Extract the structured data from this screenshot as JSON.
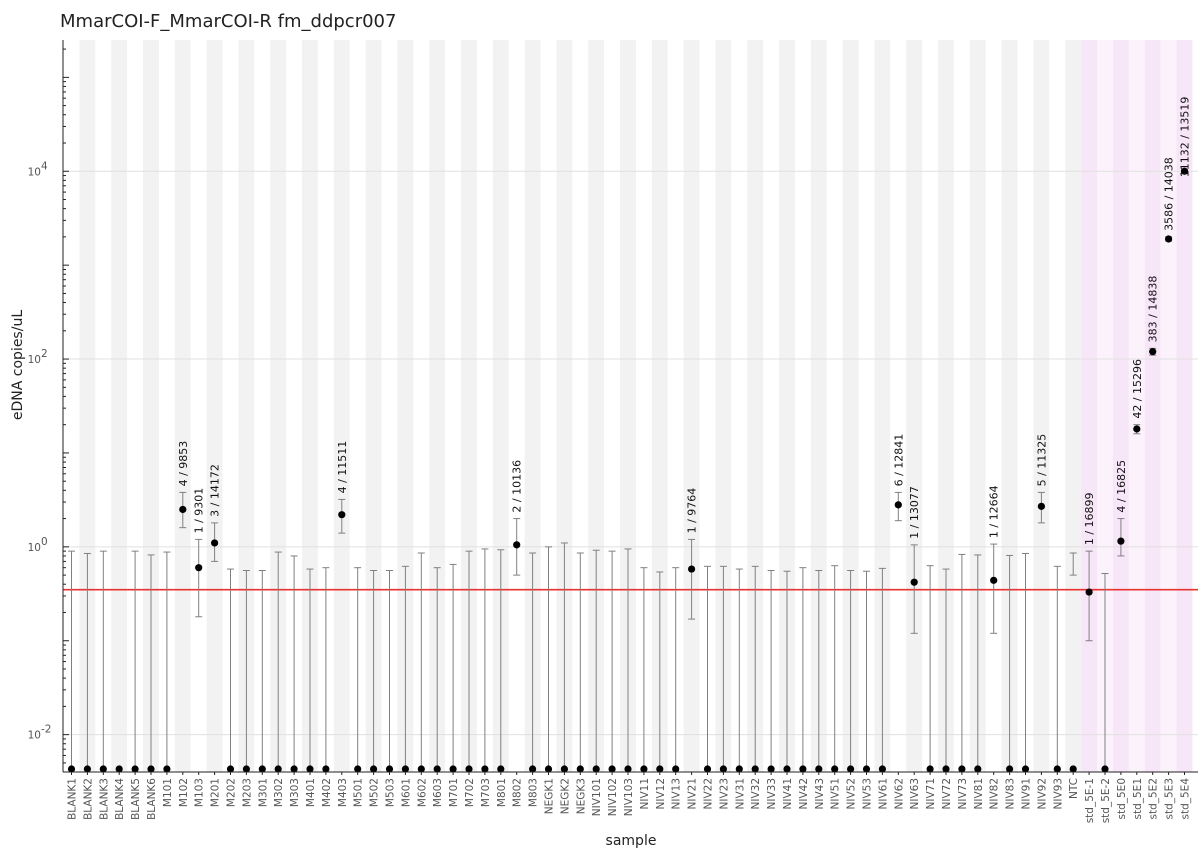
{
  "chart_data": {
    "type": "scatter",
    "title": "MmarCOI-F_MmarCOI-R fm_ddpcr007",
    "xlabel": "sample",
    "ylabel": "eDNA copies/uL",
    "yscale": "log",
    "ylim": [
      0.004,
      250000
    ],
    "ytick_labels": [
      "10",
      "10",
      "10",
      "10",
      "10"
    ],
    "ytick_exponents": [
      "-2",
      "0",
      "2",
      "4",
      ""
    ],
    "yticks": [
      0.01,
      1,
      100,
      10000
    ],
    "threshold_line": {
      "value": 0.35,
      "color": "#e8332f"
    },
    "band_colors": {
      "gray": "#f2f2f2",
      "white": "#ffffff",
      "std_light": "#fcf2fc",
      "std_dark": "#f7e6f7"
    },
    "point_color": "#000000",
    "errorbar_color": "#808080",
    "grid": true,
    "categories": [
      "BLANK1",
      "BLANK2",
      "BLANK3",
      "BLANK4",
      "BLANK5",
      "BLANK6",
      "M101",
      "M102",
      "M103",
      "M201",
      "M202",
      "M203",
      "M301",
      "M302",
      "M303",
      "M401",
      "M402",
      "M403",
      "M501",
      "M502",
      "M503",
      "M601",
      "M602",
      "M603",
      "M701",
      "M702",
      "M703",
      "M801",
      "M802",
      "M803",
      "NEGK1",
      "NEGK2",
      "NEGK3",
      "NIV101",
      "NIV102",
      "NIV103",
      "NIV11",
      "NIV12",
      "NIV13",
      "NIV21",
      "NIV22",
      "NIV23",
      "NIV31",
      "NIV32",
      "NIV33",
      "NIV41",
      "NIV42",
      "NIV43",
      "NIV51",
      "NIV52",
      "NIV53",
      "NIV61",
      "NIV62",
      "NIV63",
      "NIV71",
      "NIV72",
      "NIV73",
      "NIV81",
      "NIV82",
      "NIV83",
      "NIV91",
      "NIV92",
      "NIV93",
      "NTC",
      "std_5E-1",
      "std_5E-2",
      "std_5E0",
      "std_5E1",
      "std_5E2",
      "std_5E3",
      "std_5E4"
    ],
    "values": [
      0.004,
      0.004,
      0.004,
      0.004,
      0.004,
      0.004,
      0.004,
      2.5,
      0.6,
      1.1,
      0.004,
      0.004,
      0.004,
      0.004,
      0.004,
      0.004,
      0.004,
      2.2,
      0.004,
      0.004,
      0.004,
      0.004,
      0.004,
      0.004,
      0.004,
      0.004,
      0.004,
      0.004,
      1.05,
      0.004,
      0.004,
      0.004,
      0.004,
      0.004,
      0.004,
      0.004,
      0.004,
      0.004,
      0.004,
      0.58,
      0.004,
      0.004,
      0.004,
      0.004,
      0.004,
      0.004,
      0.004,
      0.004,
      0.004,
      0.004,
      0.004,
      0.004,
      2.8,
      0.42,
      0.004,
      0.004,
      0.004,
      0.004,
      0.44,
      0.004,
      0.004,
      2.7,
      0.004,
      0.004,
      0.33,
      0.004,
      1.15,
      18,
      120,
      1900,
      10000
    ],
    "upper": [
      0.9,
      0.85,
      0.9,
      0.004,
      0.9,
      0.82,
      0.88,
      3.8,
      1.2,
      1.8,
      0.58,
      0.56,
      0.56,
      0.88,
      0.8,
      0.58,
      0.6,
      3.2,
      0.6,
      0.56,
      0.56,
      0.62,
      0.86,
      0.6,
      0.65,
      0.9,
      0.95,
      0.93,
      2.0,
      0.86,
      1.0,
      1.1,
      0.86,
      0.92,
      0.9,
      0.95,
      0.6,
      0.54,
      0.6,
      1.2,
      0.62,
      0.62,
      0.58,
      0.62,
      0.56,
      0.55,
      0.6,
      0.56,
      0.63,
      0.56,
      0.55,
      0.59,
      3.8,
      1.05,
      0.63,
      0.58,
      0.83,
      0.82,
      1.07,
      0.81,
      0.85,
      3.8,
      0.62,
      0.86,
      0.9,
      0.52,
      2.0,
      20,
      130,
      2000,
      10400
    ],
    "lower": [
      0.004,
      0.004,
      0.004,
      0.004,
      0.004,
      0.004,
      0.004,
      1.6,
      0.18,
      0.7,
      0.004,
      0.004,
      0.004,
      0.004,
      0.004,
      0.004,
      0.004,
      1.4,
      0.004,
      0.004,
      0.004,
      0.004,
      0.004,
      0.004,
      0.004,
      0.004,
      0.004,
      0.004,
      0.5,
      0.004,
      0.004,
      0.004,
      0.004,
      0.004,
      0.004,
      0.004,
      0.004,
      0.004,
      0.004,
      0.17,
      0.004,
      0.004,
      0.004,
      0.004,
      0.004,
      0.004,
      0.004,
      0.004,
      0.004,
      0.004,
      0.004,
      0.004,
      1.9,
      0.12,
      0.004,
      0.004,
      0.004,
      0.004,
      0.12,
      0.004,
      0.004,
      1.8,
      0.004,
      0.5,
      0.1,
      0.004,
      0.8,
      16,
      110,
      1800,
      9700
    ],
    "annotations": [
      {
        "index": 7,
        "text": "4 / 9853"
      },
      {
        "index": 8,
        "text": "1 / 9301"
      },
      {
        "index": 9,
        "text": "3 / 14172"
      },
      {
        "index": 17,
        "text": "4 / 11511"
      },
      {
        "index": 28,
        "text": "2 / 10136"
      },
      {
        "index": 39,
        "text": "1 / 9764"
      },
      {
        "index": 52,
        "text": "6 / 12841"
      },
      {
        "index": 53,
        "text": "1 / 13077"
      },
      {
        "index": 58,
        "text": "1 / 12664"
      },
      {
        "index": 61,
        "text": "5 / 11325"
      },
      {
        "index": 64,
        "text": "1 / 16899"
      },
      {
        "index": 66,
        "text": "4 / 16825"
      },
      {
        "index": 67,
        "text": "42 / 15296"
      },
      {
        "index": 68,
        "text": "383 / 14838"
      },
      {
        "index": 69,
        "text": "3586 / 14038"
      },
      {
        "index": 70,
        "text": "11132 / 13519"
      }
    ]
  }
}
